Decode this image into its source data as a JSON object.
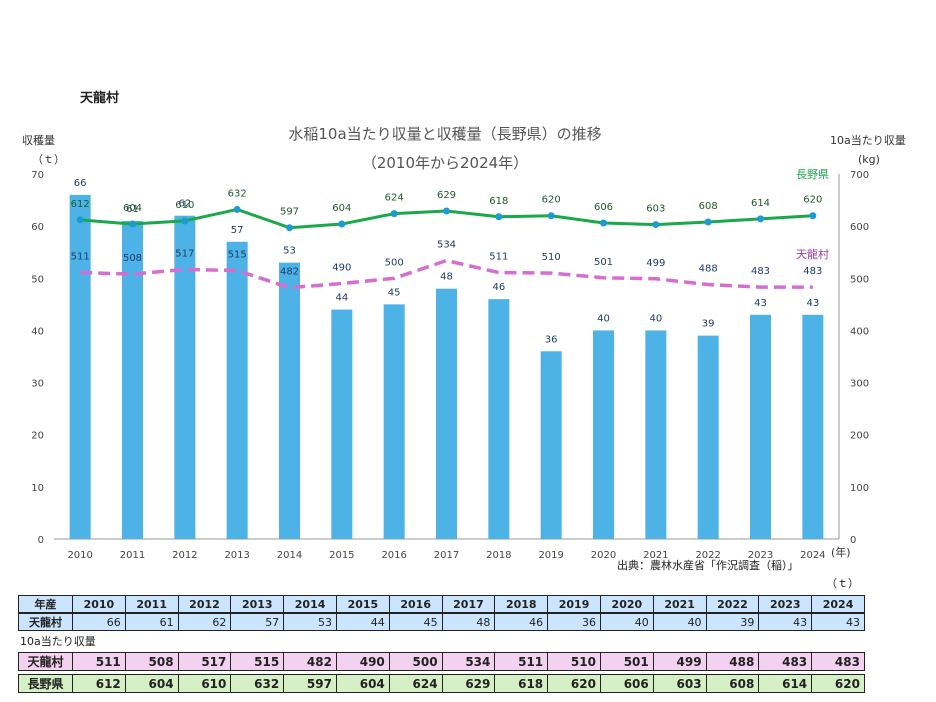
{
  "region_title": "天龍村",
  "chart_data": {
    "type": "bar+line",
    "title": "水稲10a当たり収量と収穫量（長野県）の推移",
    "subtitle": "（2010年から2024年）",
    "left_axis_label": "収穫量",
    "left_axis_unit": "（ｔ）",
    "right_axis_label": "10a当たり収量",
    "right_axis_unit": "(kg)",
    "x_unit": "(年)",
    "left_ylim": [
      0,
      70
    ],
    "left_ticks": [
      "0",
      "10",
      "20",
      "30",
      "40",
      "50",
      "60",
      "70"
    ],
    "right_ylim": [
      0,
      700
    ],
    "right_ticks": [
      "0",
      "100",
      "200",
      "300",
      "400",
      "500",
      "600",
      "700"
    ],
    "categories": [
      "2010",
      "2011",
      "2012",
      "2013",
      "2014",
      "2015",
      "2016",
      "2017",
      "2018",
      "2019",
      "2020",
      "2021",
      "2022",
      "2023",
      "2024"
    ],
    "series": [
      {
        "name": "天龍村 収穫量",
        "kind": "bar",
        "axis": "left",
        "color": "#4db3e6",
        "values": [
          66,
          61,
          62,
          57,
          53,
          44,
          45,
          48,
          46,
          36,
          40,
          40,
          39,
          43,
          43
        ]
      },
      {
        "name": "長野県",
        "kind": "line",
        "axis": "right",
        "color": "#1aa84a",
        "values": [
          612,
          604,
          610,
          632,
          597,
          604,
          624,
          629,
          618,
          620,
          606,
          603,
          608,
          614,
          620
        ]
      },
      {
        "name": "天龍村",
        "kind": "dashed-line",
        "axis": "right",
        "color": "#d66ed0",
        "values": [
          511,
          508,
          517,
          515,
          482,
          490,
          500,
          534,
          511,
          510,
          501,
          499,
          488,
          483,
          483
        ]
      }
    ],
    "series_labels": {
      "nagano": "長野県",
      "tenryu": "天龍村"
    }
  },
  "source_note": "出典：農林水産省「作況調査（稲）」",
  "table": {
    "unit": "（ｔ）",
    "year_header": "年産",
    "years": [
      "2010",
      "2011",
      "2012",
      "2013",
      "2014",
      "2015",
      "2016",
      "2017",
      "2018",
      "2019",
      "2020",
      "2021",
      "2022",
      "2023",
      "2024"
    ],
    "harvest_label": "天龍村",
    "harvest": [
      "66",
      "61",
      "62",
      "57",
      "53",
      "44",
      "45",
      "48",
      "46",
      "36",
      "40",
      "40",
      "39",
      "43",
      "43"
    ],
    "yield_section_label": "10a当たり収量",
    "yield_tenryu_label": "天龍村",
    "yield_tenryu": [
      "511",
      "508",
      "517",
      "515",
      "482",
      "490",
      "500",
      "534",
      "511",
      "510",
      "501",
      "499",
      "488",
      "483",
      "483"
    ],
    "yield_nagano_label": "長野県",
    "yield_nagano": [
      "612",
      "604",
      "610",
      "632",
      "597",
      "604",
      "624",
      "629",
      "618",
      "620",
      "606",
      "603",
      "608",
      "614",
      "620"
    ]
  }
}
